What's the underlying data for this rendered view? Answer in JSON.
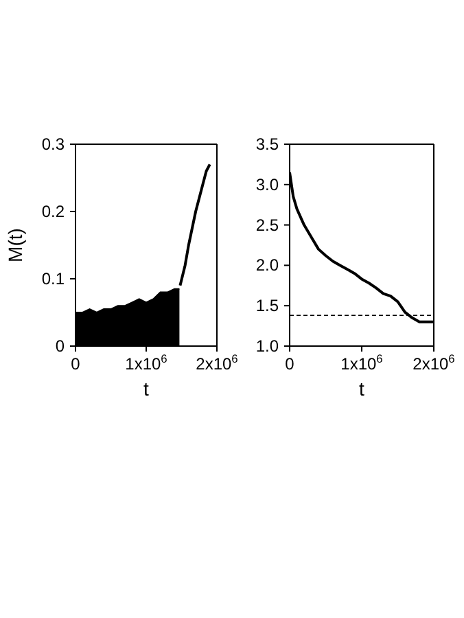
{
  "chart_data": [
    {
      "type": "line",
      "xlabel": "t",
      "ylabel": "M(t)",
      "xlim": [
        0,
        2000000
      ],
      "xticks": [
        {
          "value": 0,
          "label": "0"
        },
        {
          "value": 1000000,
          "label": "1x10$^{6}$"
        },
        {
          "value": 2000000,
          "label": "2x10$^{6}$"
        }
      ],
      "ylim": [
        0,
        0.3
      ],
      "yticks": [
        0,
        0.1,
        0.2,
        0.3
      ],
      "grid": false,
      "legend": false,
      "series": [
        {
          "type": "area",
          "color": "#000000",
          "x": [
            0,
            100000,
            200000,
            300000,
            400000,
            500000,
            600000,
            700000,
            800000,
            900000,
            1000000,
            1100000,
            1200000,
            1300000,
            1400000,
            1470000
          ],
          "values": [
            0.05,
            0.05,
            0.055,
            0.05,
            0.055,
            0.055,
            0.06,
            0.06,
            0.065,
            0.07,
            0.065,
            0.07,
            0.08,
            0.08,
            0.085,
            0.085
          ]
        },
        {
          "color": "#000000",
          "x": [
            1480000,
            1550000,
            1600000,
            1700000,
            1800000,
            1850000,
            1900000
          ],
          "values": [
            0.09,
            0.12,
            0.15,
            0.2,
            0.24,
            0.26,
            0.27
          ]
        }
      ]
    },
    {
      "type": "line",
      "xlabel": "t",
      "xlim": [
        0,
        2000000
      ],
      "xticks": [
        {
          "value": 0,
          "label": "0"
        },
        {
          "value": 1000000,
          "label": "1x10$^{6}$"
        },
        {
          "value": 2000000,
          "label": "2x10$^{6}$"
        }
      ],
      "ylim": [
        1,
        3.5
      ],
      "yticks": [
        {
          "value": 1,
          "label": "1.0"
        },
        {
          "value": 1.5,
          "label": "1.5"
        },
        {
          "value": 2,
          "label": "2.0"
        },
        {
          "value": 2.5,
          "label": "2.5"
        },
        {
          "value": 3,
          "label": "3.0"
        },
        {
          "value": 3.5,
          "label": "3.5"
        }
      ],
      "grid": false,
      "legend": false,
      "ref_lines": [
        {
          "axis": "y",
          "value": 1.38,
          "line_style": "dashed",
          "color": "#000000"
        }
      ],
      "series": [
        {
          "color": "#000000",
          "x": [
            0,
            50000,
            100000,
            200000,
            300000,
            400000,
            500000,
            600000,
            700000,
            800000,
            900000,
            1000000,
            1100000,
            1200000,
            1300000,
            1400000,
            1500000,
            1600000,
            1700000,
            1800000,
            1900000,
            2000000
          ],
          "values": [
            3.15,
            2.85,
            2.7,
            2.5,
            2.35,
            2.2,
            2.12,
            2.05,
            2.0,
            1.95,
            1.9,
            1.83,
            1.78,
            1.72,
            1.65,
            1.62,
            1.55,
            1.42,
            1.35,
            1.3,
            1.3,
            1.3
          ]
        }
      ]
    }
  ]
}
